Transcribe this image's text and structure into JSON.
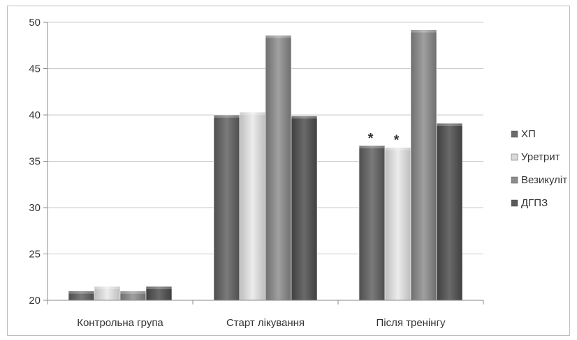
{
  "chart_data": {
    "type": "bar",
    "title": "",
    "xlabel": "",
    "ylabel": "",
    "categories": [
      "Контрольна група",
      "Старт лікування",
      "Після тренінгу"
    ],
    "series": [
      {
        "name": "ХП",
        "color": "#6b6b6b",
        "values": [
          21.0,
          40.0,
          36.7
        ]
      },
      {
        "name": "Уретрит",
        "color": "#d9d9d9",
        "values": [
          21.5,
          40.3,
          36.5
        ]
      },
      {
        "name": "Везикуліт",
        "color": "#8c8c8c",
        "values": [
          21.0,
          48.6,
          49.2
        ]
      },
      {
        "name": "ДГПЗ",
        "color": "#5a5a5a",
        "values": [
          21.5,
          39.9,
          39.1
        ]
      }
    ],
    "ylim": [
      20,
      50
    ],
    "yticks": [
      20,
      25,
      30,
      35,
      40,
      45,
      50
    ],
    "grid": true,
    "legend_position": "right",
    "annotations": [
      {
        "text": "*",
        "category": 2,
        "series": 0
      },
      {
        "text": "*",
        "category": 2,
        "series": 1
      }
    ]
  }
}
